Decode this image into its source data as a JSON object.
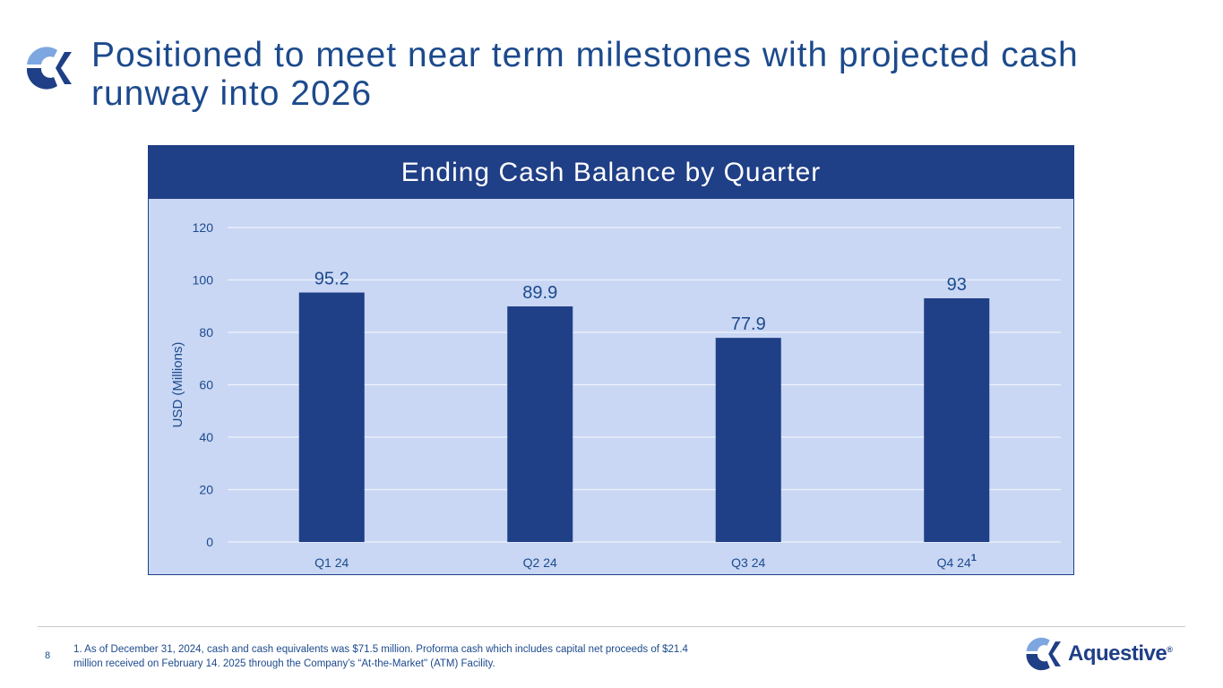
{
  "slide": {
    "title_line1": "Positioned to meet near term milestones with projected cash",
    "title_line2": "runway into 2026",
    "page_number": "8",
    "footnote_line1": "1. As of December 31, 2024, cash and cash equivalents was $71.5 million.  Proforma cash which includes capital net proceeds of $21.4",
    "footnote_line2": "million received on February 14. 2025 through the Company’s “At-the-Market\" (ATM) Facility.",
    "brand_name": "Aquestive",
    "brand_mark": "®"
  },
  "colors": {
    "title": "#1c4a8c",
    "bar": "#1f3f86",
    "panel": "#c9d7f4",
    "logo_light": "#7ea6e0",
    "logo_dark": "#1f3f86"
  },
  "icons": {
    "slide_logo": "aquestive-logo-icon",
    "brand_logo": "aquestive-logo-icon"
  },
  "chart_data": {
    "type": "bar",
    "title": "Ending Cash Balance by Quarter",
    "categories": [
      "Q1 24",
      "Q2 24",
      "Q3 24",
      "Q4 24"
    ],
    "category_superscripts": [
      "",
      "",
      "",
      "1"
    ],
    "values": [
      95.2,
      89.9,
      77.9,
      93
    ],
    "data_labels": [
      "95.2",
      "89.9",
      "77.9",
      "93"
    ],
    "ylabel": "USD (Millions)",
    "xlabel": "",
    "ylim": [
      0,
      120
    ],
    "yticks": [
      0,
      20,
      40,
      60,
      80,
      100,
      120
    ],
    "grid": true,
    "legend": "none"
  }
}
